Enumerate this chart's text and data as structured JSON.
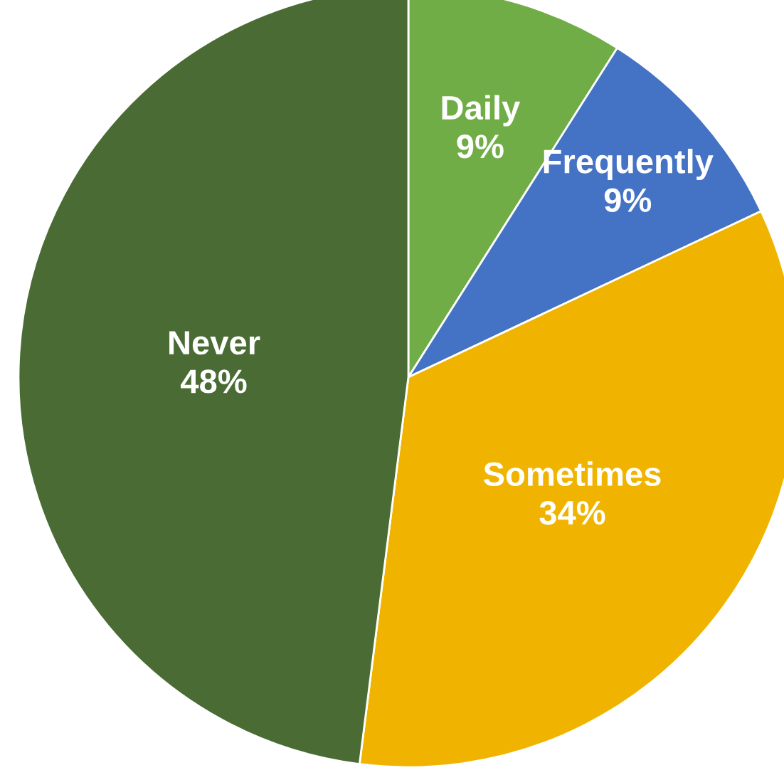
{
  "chart_data": {
    "type": "pie",
    "categories": [
      "Daily",
      "Frequently",
      "Sometimes",
      "Never"
    ],
    "values": [
      9,
      9,
      34,
      48
    ],
    "value_labels": [
      "9%",
      "9%",
      "34%",
      "48%"
    ],
    "colors": [
      "#70ad47",
      "#4472c4",
      "#f0b400",
      "#4a6c34"
    ],
    "legend": false
  }
}
